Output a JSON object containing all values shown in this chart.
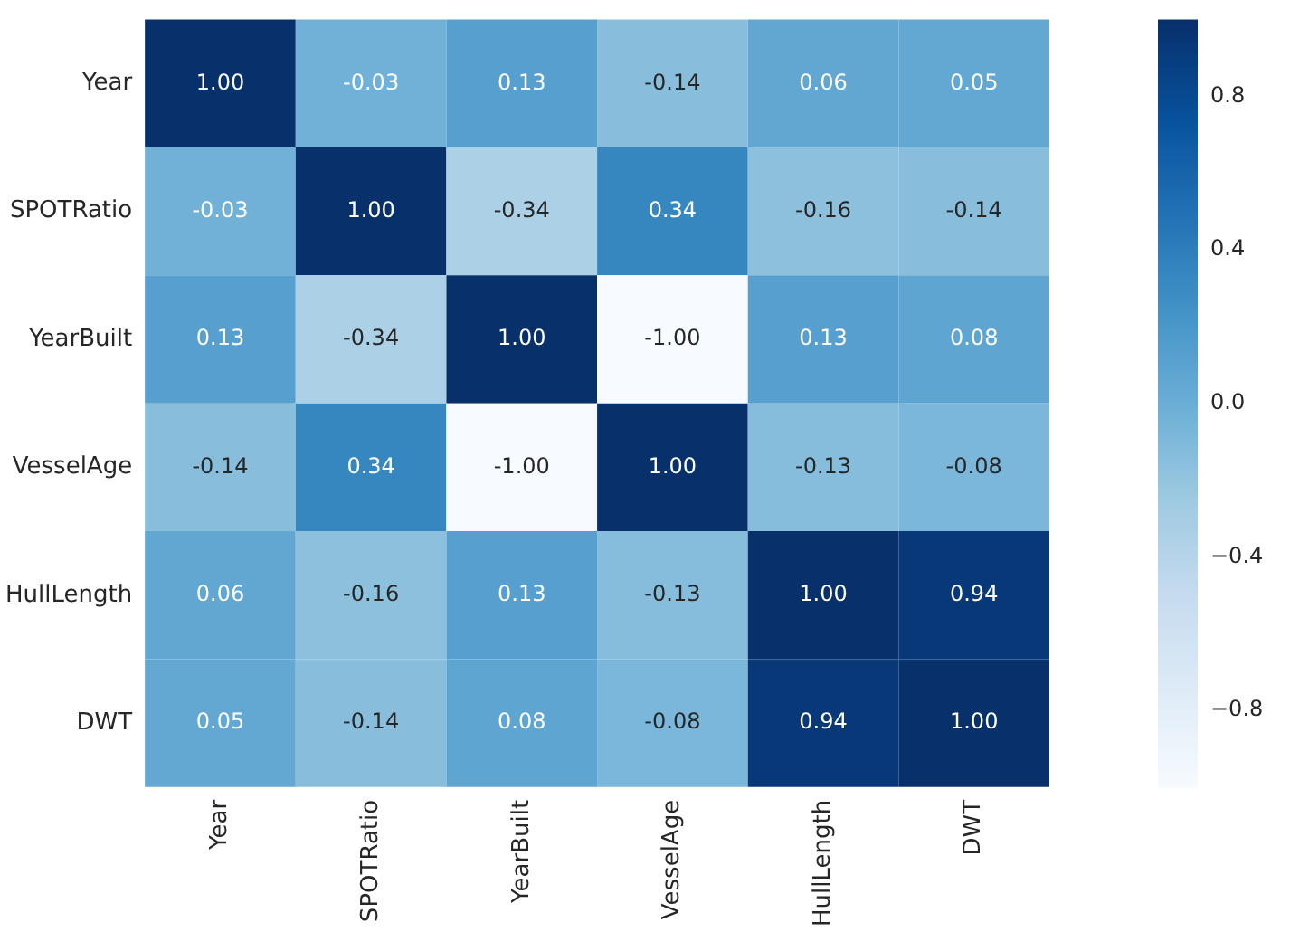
{
  "chart_data": {
    "type": "heatmap",
    "categories": [
      "Year",
      "SPOTRatio",
      "YearBuilt",
      "VesselAge",
      "HullLength",
      "DWT"
    ],
    "y_categories": [
      "Year",
      "SPOTRatio",
      "YearBuilt",
      "VesselAge",
      "HullLength",
      "DWT"
    ],
    "cells": [
      [
        1.0,
        -0.03,
        0.13,
        -0.14,
        0.06,
        0.05
      ],
      [
        -0.03,
        1.0,
        -0.34,
        0.34,
        -0.16,
        -0.14
      ],
      [
        0.13,
        -0.34,
        1.0,
        -1.0,
        0.13,
        0.08
      ],
      [
        -0.14,
        0.34,
        -1.0,
        1.0,
        -0.13,
        -0.08
      ],
      [
        0.06,
        -0.16,
        0.13,
        -0.13,
        1.0,
        0.94
      ],
      [
        0.05,
        -0.14,
        0.08,
        -0.08,
        0.94,
        1.0
      ]
    ],
    "cell_labels": [
      [
        "1.00",
        "-0.03",
        "0.13",
        "-0.14",
        "0.06",
        "0.05"
      ],
      [
        "-0.03",
        "1.00",
        "-0.34",
        "0.34",
        "-0.16",
        "-0.14"
      ],
      [
        "0.13",
        "-0.34",
        "1.00",
        "-1.00",
        "0.13",
        "0.08"
      ],
      [
        "-0.14",
        "0.34",
        "-1.00",
        "1.00",
        "-0.13",
        "-0.08"
      ],
      [
        "0.06",
        "-0.16",
        "0.13",
        "-0.13",
        "1.00",
        "0.94"
      ],
      [
        "0.05",
        "-0.14",
        "0.08",
        "-0.08",
        "0.94",
        "1.00"
      ]
    ],
    "clim": [
      -1,
      1
    ],
    "cticks": [
      {
        "value": 0.8,
        "label": "0.8"
      },
      {
        "value": 0.4,
        "label": "0.4"
      },
      {
        "value": 0,
        "label": "0.0"
      },
      {
        "value": -0.4,
        "label": "−0.4"
      },
      {
        "value": -0.8,
        "label": "−0.8"
      }
    ]
  }
}
